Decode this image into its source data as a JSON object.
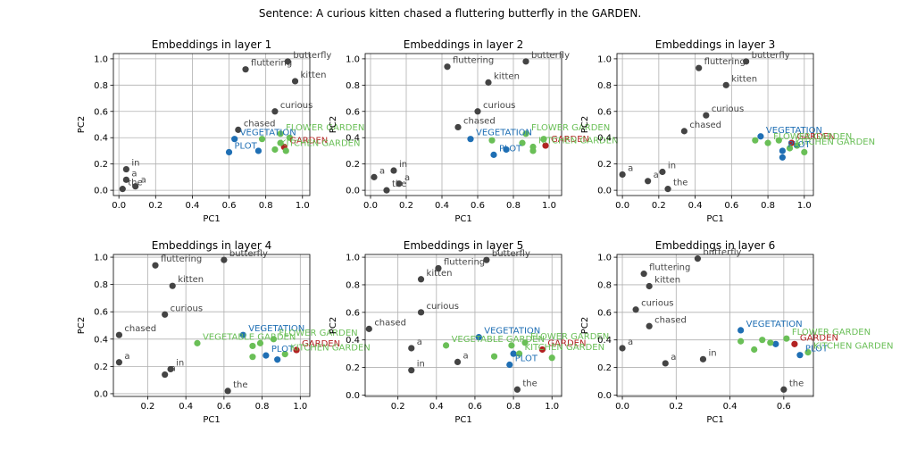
{
  "sentence_title": "Sentence: A curious kitten chased a fluttering butterfly in the GARDEN.",
  "colors": {
    "token": "#444444",
    "target": "#b22222",
    "green": "#6abf57",
    "blue": "#1f6fb4"
  },
  "chart_data": [
    {
      "type": "scatter",
      "title": "Embeddings in layer 1",
      "xlabel": "PC1",
      "ylabel": "PC2",
      "xlim": [
        -0.03,
        1.04
      ],
      "ylim": [
        -0.04,
        1.04
      ],
      "xticks": [
        0.0,
        0.2,
        0.4,
        0.6,
        0.8,
        1.0
      ],
      "yticks": [
        0.0,
        0.2,
        0.4,
        0.6,
        0.8,
        1.0
      ],
      "grid": true,
      "points": [
        {
          "label": "butterfly",
          "x": 0.92,
          "y": 0.98,
          "group": "token"
        },
        {
          "label": "fluttering",
          "x": 0.69,
          "y": 0.92,
          "group": "token"
        },
        {
          "label": "kitten",
          "x": 0.96,
          "y": 0.83,
          "group": "token"
        },
        {
          "label": "curious",
          "x": 0.85,
          "y": 0.6,
          "group": "token"
        },
        {
          "label": "chased",
          "x": 0.65,
          "y": 0.46,
          "group": "token"
        },
        {
          "label": "in",
          "x": 0.04,
          "y": 0.16,
          "group": "token"
        },
        {
          "label": "a",
          "x": 0.04,
          "y": 0.08,
          "group": "token"
        },
        {
          "label": "the",
          "x": 0.02,
          "y": 0.01,
          "group": "token"
        },
        {
          "label": "a",
          "x": 0.09,
          "y": 0.03,
          "group": "token"
        },
        {
          "label": "GARDEN",
          "x": 0.9,
          "y": 0.33,
          "group": "target"
        },
        {
          "label": "VEGETATION",
          "x": 0.63,
          "y": 0.39,
          "group": "blue"
        },
        {
          "label": "PLOT",
          "x": 0.6,
          "y": 0.29,
          "group": "blue"
        },
        {
          "label": "",
          "x": 0.76,
          "y": 0.3,
          "group": "blue"
        },
        {
          "label": "FLOWER GARDEN",
          "x": 0.88,
          "y": 0.43,
          "group": "green"
        },
        {
          "label": "KITCHEN GARDEN",
          "x": 0.85,
          "y": 0.31,
          "group": "green"
        },
        {
          "label": "",
          "x": 0.78,
          "y": 0.39,
          "group": "green"
        },
        {
          "label": "",
          "x": 0.93,
          "y": 0.4,
          "group": "green"
        },
        {
          "label": "",
          "x": 0.88,
          "y": 0.36,
          "group": "green"
        },
        {
          "label": "",
          "x": 0.91,
          "y": 0.3,
          "group": "green"
        }
      ]
    },
    {
      "type": "scatter",
      "title": "Embeddings in layer 2",
      "xlabel": "PC1",
      "ylabel": "PC2",
      "xlim": [
        -0.03,
        1.07
      ],
      "ylim": [
        -0.04,
        1.04
      ],
      "xticks": [
        0.0,
        0.2,
        0.4,
        0.6,
        0.8,
        1.0
      ],
      "yticks": [
        0.0,
        0.2,
        0.4,
        0.6,
        0.8,
        1.0
      ],
      "grid": true,
      "points": [
        {
          "label": "butterfly",
          "x": 0.87,
          "y": 0.98,
          "group": "token"
        },
        {
          "label": "fluttering",
          "x": 0.43,
          "y": 0.94,
          "group": "token"
        },
        {
          "label": "kitten",
          "x": 0.66,
          "y": 0.82,
          "group": "token"
        },
        {
          "label": "curious",
          "x": 0.6,
          "y": 0.6,
          "group": "token"
        },
        {
          "label": "chased",
          "x": 0.49,
          "y": 0.48,
          "group": "token"
        },
        {
          "label": "in",
          "x": 0.13,
          "y": 0.15,
          "group": "token"
        },
        {
          "label": "a",
          "x": 0.02,
          "y": 0.1,
          "group": "token"
        },
        {
          "label": "the",
          "x": 0.09,
          "y": 0.0,
          "group": "token"
        },
        {
          "label": "a",
          "x": 0.16,
          "y": 0.05,
          "group": "token"
        },
        {
          "label": "GARDEN",
          "x": 0.98,
          "y": 0.34,
          "group": "target"
        },
        {
          "label": "VEGETATION",
          "x": 0.56,
          "y": 0.39,
          "group": "blue"
        },
        {
          "label": "PLOT",
          "x": 0.69,
          "y": 0.27,
          "group": "blue"
        },
        {
          "label": "",
          "x": 0.76,
          "y": 0.31,
          "group": "blue"
        },
        {
          "label": "FLOWER GARDEN",
          "x": 0.87,
          "y": 0.43,
          "group": "green"
        },
        {
          "label": "KITCHEN GARDEN",
          "x": 0.91,
          "y": 0.33,
          "group": "green"
        },
        {
          "label": "",
          "x": 0.68,
          "y": 0.38,
          "group": "green"
        },
        {
          "label": "",
          "x": 0.97,
          "y": 0.39,
          "group": "green"
        },
        {
          "label": "",
          "x": 0.85,
          "y": 0.36,
          "group": "green"
        },
        {
          "label": "",
          "x": 0.91,
          "y": 0.3,
          "group": "green"
        }
      ]
    },
    {
      "type": "scatter",
      "title": "Embeddings in layer 3",
      "xlabel": "PC1",
      "ylabel": "PC2",
      "xlim": [
        -0.03,
        1.05
      ],
      "ylim": [
        -0.04,
        1.04
      ],
      "xticks": [
        0.0,
        0.2,
        0.4,
        0.6,
        0.8,
        1.0
      ],
      "yticks": [
        0.0,
        0.2,
        0.4,
        0.6,
        0.8,
        1.0
      ],
      "grid": true,
      "points": [
        {
          "label": "butterfly",
          "x": 0.68,
          "y": 0.98,
          "group": "token"
        },
        {
          "label": "fluttering",
          "x": 0.42,
          "y": 0.93,
          "group": "token"
        },
        {
          "label": "kitten",
          "x": 0.57,
          "y": 0.8,
          "group": "token"
        },
        {
          "label": "curious",
          "x": 0.46,
          "y": 0.57,
          "group": "token"
        },
        {
          "label": "chased",
          "x": 0.34,
          "y": 0.45,
          "group": "token"
        },
        {
          "label": "in",
          "x": 0.22,
          "y": 0.14,
          "group": "token"
        },
        {
          "label": "a",
          "x": 0.0,
          "y": 0.12,
          "group": "token"
        },
        {
          "label": "a",
          "x": 0.14,
          "y": 0.07,
          "group": "token"
        },
        {
          "label": "the",
          "x": 0.25,
          "y": 0.01,
          "group": "token"
        },
        {
          "label": "GARDEN",
          "x": 0.93,
          "y": 0.36,
          "group": "target"
        },
        {
          "label": "VEGETATION",
          "x": 0.76,
          "y": 0.41,
          "group": "blue"
        },
        {
          "label": "PLOT",
          "x": 0.88,
          "y": 0.3,
          "group": "blue"
        },
        {
          "label": "",
          "x": 0.88,
          "y": 0.25,
          "group": "blue"
        },
        {
          "label": "FLOWER GARDEN",
          "x": 0.8,
          "y": 0.36,
          "group": "green"
        },
        {
          "label": "KITCHEN GARDEN",
          "x": 0.92,
          "y": 0.32,
          "group": "green"
        },
        {
          "label": "",
          "x": 0.73,
          "y": 0.38,
          "group": "green"
        },
        {
          "label": "",
          "x": 0.86,
          "y": 0.38,
          "group": "green"
        },
        {
          "label": "",
          "x": 0.96,
          "y": 0.34,
          "group": "green"
        },
        {
          "label": "",
          "x": 1.0,
          "y": 0.29,
          "group": "green"
        }
      ]
    },
    {
      "type": "scatter",
      "title": "Embeddings in layer 4",
      "xlabel": "PC1",
      "ylabel": "PC2",
      "xlim": [
        0.02,
        1.05
      ],
      "ylim": [
        -0.02,
        1.02
      ],
      "xticks": [
        0.2,
        0.4,
        0.6,
        0.8,
        1.0
      ],
      "yticks": [
        0.0,
        0.2,
        0.4,
        0.6,
        0.8,
        1.0
      ],
      "grid": true,
      "points": [
        {
          "label": "butterfly",
          "x": 0.6,
          "y": 0.98,
          "group": "token"
        },
        {
          "label": "fluttering",
          "x": 0.24,
          "y": 0.94,
          "group": "token"
        },
        {
          "label": "kitten",
          "x": 0.33,
          "y": 0.79,
          "group": "token"
        },
        {
          "label": "curious",
          "x": 0.29,
          "y": 0.58,
          "group": "token"
        },
        {
          "label": "chased",
          "x": 0.05,
          "y": 0.43,
          "group": "token"
        },
        {
          "label": "a",
          "x": 0.05,
          "y": 0.23,
          "group": "token"
        },
        {
          "label": "in",
          "x": 0.32,
          "y": 0.18,
          "group": "token"
        },
        {
          "label": "a",
          "x": 0.29,
          "y": 0.14,
          "group": "token"
        },
        {
          "label": "the",
          "x": 0.62,
          "y": 0.02,
          "group": "token"
        },
        {
          "label": "GARDEN",
          "x": 0.98,
          "y": 0.32,
          "group": "target"
        },
        {
          "label": "VEGETATION",
          "x": 0.7,
          "y": 0.43,
          "group": "blue"
        },
        {
          "label": "PLOT",
          "x": 0.82,
          "y": 0.28,
          "group": "blue"
        },
        {
          "label": "",
          "x": 0.88,
          "y": 0.25,
          "group": "blue"
        },
        {
          "label": "VEGETABLE GARDEN",
          "x": 0.46,
          "y": 0.37,
          "group": "green"
        },
        {
          "label": "FLOWER GARDEN",
          "x": 0.86,
          "y": 0.4,
          "group": "green"
        },
        {
          "label": "KITCHEN GARDEN",
          "x": 0.92,
          "y": 0.29,
          "group": "green"
        },
        {
          "label": "",
          "x": 0.75,
          "y": 0.35,
          "group": "green"
        },
        {
          "label": "",
          "x": 0.79,
          "y": 0.37,
          "group": "green"
        },
        {
          "label": "",
          "x": 0.75,
          "y": 0.27,
          "group": "green"
        }
      ]
    },
    {
      "type": "scatter",
      "title": "Embeddings in layer 5",
      "xlabel": "PC1",
      "ylabel": "PC2",
      "xlim": [
        0.03,
        1.05
      ],
      "ylim": [
        -0.01,
        1.02
      ],
      "xticks": [
        0.2,
        0.4,
        0.6,
        0.8,
        1.0
      ],
      "yticks": [
        0.0,
        0.2,
        0.4,
        0.6,
        0.8,
        1.0
      ],
      "grid": true,
      "points": [
        {
          "label": "butterfly",
          "x": 0.66,
          "y": 0.98,
          "group": "token"
        },
        {
          "label": "fluttering",
          "x": 0.41,
          "y": 0.92,
          "group": "token"
        },
        {
          "label": "kitten",
          "x": 0.32,
          "y": 0.84,
          "group": "token"
        },
        {
          "label": "curious",
          "x": 0.32,
          "y": 0.6,
          "group": "token"
        },
        {
          "label": "chased",
          "x": 0.05,
          "y": 0.48,
          "group": "token"
        },
        {
          "label": "a",
          "x": 0.27,
          "y": 0.34,
          "group": "token"
        },
        {
          "label": "a",
          "x": 0.51,
          "y": 0.24,
          "group": "token"
        },
        {
          "label": "in",
          "x": 0.27,
          "y": 0.18,
          "group": "token"
        },
        {
          "label": "the",
          "x": 0.82,
          "y": 0.04,
          "group": "token"
        },
        {
          "label": "GARDEN",
          "x": 0.95,
          "y": 0.33,
          "group": "target"
        },
        {
          "label": "VEGETATION",
          "x": 0.62,
          "y": 0.42,
          "group": "blue"
        },
        {
          "label": "PLOT",
          "x": 0.78,
          "y": 0.22,
          "group": "blue"
        },
        {
          "label": "",
          "x": 0.8,
          "y": 0.3,
          "group": "blue"
        },
        {
          "label": "VEGETABLE GARDEN",
          "x": 0.45,
          "y": 0.36,
          "group": "green"
        },
        {
          "label": "FLOWER GARDEN",
          "x": 0.86,
          "y": 0.38,
          "group": "green"
        },
        {
          "label": "KITCHEN GARDEN",
          "x": 0.83,
          "y": 0.3,
          "group": "green"
        },
        {
          "label": "",
          "x": 0.7,
          "y": 0.28,
          "group": "green"
        },
        {
          "label": "",
          "x": 0.79,
          "y": 0.36,
          "group": "green"
        },
        {
          "label": "",
          "x": 1.0,
          "y": 0.27,
          "group": "green"
        }
      ]
    },
    {
      "type": "scatter",
      "title": "Embeddings in layer 6",
      "xlabel": "PC1",
      "ylabel": "PC2",
      "xlim": [
        -0.02,
        0.71
      ],
      "ylim": [
        -0.01,
        1.02
      ],
      "xticks": [
        0.0,
        0.2,
        0.4,
        0.6
      ],
      "yticks": [
        0.0,
        0.2,
        0.4,
        0.6,
        0.8,
        1.0
      ],
      "grid": true,
      "points": [
        {
          "label": "butterfly",
          "x": 0.28,
          "y": 0.99,
          "group": "token"
        },
        {
          "label": "fluttering",
          "x": 0.08,
          "y": 0.88,
          "group": "token"
        },
        {
          "label": "kitten",
          "x": 0.1,
          "y": 0.79,
          "group": "token"
        },
        {
          "label": "curious",
          "x": 0.05,
          "y": 0.62,
          "group": "token"
        },
        {
          "label": "chased",
          "x": 0.1,
          "y": 0.5,
          "group": "token"
        },
        {
          "label": "a",
          "x": 0.0,
          "y": 0.34,
          "group": "token"
        },
        {
          "label": "in",
          "x": 0.3,
          "y": 0.26,
          "group": "token"
        },
        {
          "label": "a",
          "x": 0.16,
          "y": 0.23,
          "group": "token"
        },
        {
          "label": "the",
          "x": 0.6,
          "y": 0.04,
          "group": "token"
        },
        {
          "label": "GARDEN",
          "x": 0.64,
          "y": 0.37,
          "group": "target"
        },
        {
          "label": "VEGETATION",
          "x": 0.44,
          "y": 0.47,
          "group": "blue"
        },
        {
          "label": "PLOT",
          "x": 0.66,
          "y": 0.29,
          "group": "blue"
        },
        {
          "label": "",
          "x": 0.57,
          "y": 0.37,
          "group": "blue"
        },
        {
          "label": "FLOWER GARDEN",
          "x": 0.61,
          "y": 0.41,
          "group": "green"
        },
        {
          "label": "KITCHEN GARDEN",
          "x": 0.69,
          "y": 0.31,
          "group": "green"
        },
        {
          "label": "",
          "x": 0.44,
          "y": 0.39,
          "group": "green"
        },
        {
          "label": "",
          "x": 0.49,
          "y": 0.33,
          "group": "green"
        },
        {
          "label": "",
          "x": 0.52,
          "y": 0.4,
          "group": "green"
        },
        {
          "label": "",
          "x": 0.55,
          "y": 0.38,
          "group": "green"
        }
      ]
    }
  ]
}
